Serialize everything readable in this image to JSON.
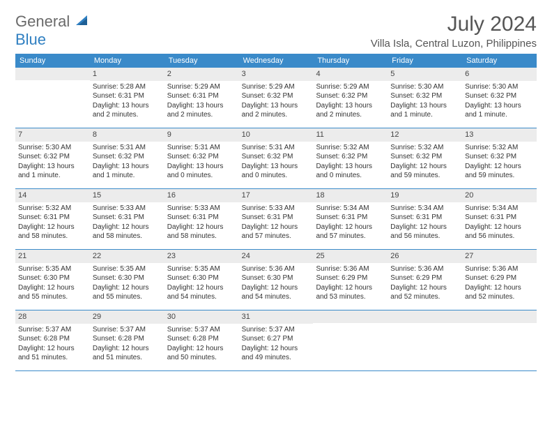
{
  "logo": {
    "part1": "General",
    "part2": "Blue"
  },
  "title": "July 2024",
  "location": "Villa Isla, Central Luzon, Philippines",
  "dayNames": [
    "Sunday",
    "Monday",
    "Tuesday",
    "Wednesday",
    "Thursday",
    "Friday",
    "Saturday"
  ],
  "colors": {
    "headerBg": "#3a8ac9",
    "dateRowBg": "#ececec",
    "rule": "#3a8ac9"
  },
  "weeks": [
    [
      {
        "date": "",
        "sunrise": "",
        "sunset": "",
        "daylight1": "",
        "daylight2": ""
      },
      {
        "date": "1",
        "sunrise": "Sunrise: 5:28 AM",
        "sunset": "Sunset: 6:31 PM",
        "daylight1": "Daylight: 13 hours",
        "daylight2": "and 2 minutes."
      },
      {
        "date": "2",
        "sunrise": "Sunrise: 5:29 AM",
        "sunset": "Sunset: 6:31 PM",
        "daylight1": "Daylight: 13 hours",
        "daylight2": "and 2 minutes."
      },
      {
        "date": "3",
        "sunrise": "Sunrise: 5:29 AM",
        "sunset": "Sunset: 6:32 PM",
        "daylight1": "Daylight: 13 hours",
        "daylight2": "and 2 minutes."
      },
      {
        "date": "4",
        "sunrise": "Sunrise: 5:29 AM",
        "sunset": "Sunset: 6:32 PM",
        "daylight1": "Daylight: 13 hours",
        "daylight2": "and 2 minutes."
      },
      {
        "date": "5",
        "sunrise": "Sunrise: 5:30 AM",
        "sunset": "Sunset: 6:32 PM",
        "daylight1": "Daylight: 13 hours",
        "daylight2": "and 1 minute."
      },
      {
        "date": "6",
        "sunrise": "Sunrise: 5:30 AM",
        "sunset": "Sunset: 6:32 PM",
        "daylight1": "Daylight: 13 hours",
        "daylight2": "and 1 minute."
      }
    ],
    [
      {
        "date": "7",
        "sunrise": "Sunrise: 5:30 AM",
        "sunset": "Sunset: 6:32 PM",
        "daylight1": "Daylight: 13 hours",
        "daylight2": "and 1 minute."
      },
      {
        "date": "8",
        "sunrise": "Sunrise: 5:31 AM",
        "sunset": "Sunset: 6:32 PM",
        "daylight1": "Daylight: 13 hours",
        "daylight2": "and 1 minute."
      },
      {
        "date": "9",
        "sunrise": "Sunrise: 5:31 AM",
        "sunset": "Sunset: 6:32 PM",
        "daylight1": "Daylight: 13 hours",
        "daylight2": "and 0 minutes."
      },
      {
        "date": "10",
        "sunrise": "Sunrise: 5:31 AM",
        "sunset": "Sunset: 6:32 PM",
        "daylight1": "Daylight: 13 hours",
        "daylight2": "and 0 minutes."
      },
      {
        "date": "11",
        "sunrise": "Sunrise: 5:32 AM",
        "sunset": "Sunset: 6:32 PM",
        "daylight1": "Daylight: 13 hours",
        "daylight2": "and 0 minutes."
      },
      {
        "date": "12",
        "sunrise": "Sunrise: 5:32 AM",
        "sunset": "Sunset: 6:32 PM",
        "daylight1": "Daylight: 12 hours",
        "daylight2": "and 59 minutes."
      },
      {
        "date": "13",
        "sunrise": "Sunrise: 5:32 AM",
        "sunset": "Sunset: 6:32 PM",
        "daylight1": "Daylight: 12 hours",
        "daylight2": "and 59 minutes."
      }
    ],
    [
      {
        "date": "14",
        "sunrise": "Sunrise: 5:32 AM",
        "sunset": "Sunset: 6:31 PM",
        "daylight1": "Daylight: 12 hours",
        "daylight2": "and 58 minutes."
      },
      {
        "date": "15",
        "sunrise": "Sunrise: 5:33 AM",
        "sunset": "Sunset: 6:31 PM",
        "daylight1": "Daylight: 12 hours",
        "daylight2": "and 58 minutes."
      },
      {
        "date": "16",
        "sunrise": "Sunrise: 5:33 AM",
        "sunset": "Sunset: 6:31 PM",
        "daylight1": "Daylight: 12 hours",
        "daylight2": "and 58 minutes."
      },
      {
        "date": "17",
        "sunrise": "Sunrise: 5:33 AM",
        "sunset": "Sunset: 6:31 PM",
        "daylight1": "Daylight: 12 hours",
        "daylight2": "and 57 minutes."
      },
      {
        "date": "18",
        "sunrise": "Sunrise: 5:34 AM",
        "sunset": "Sunset: 6:31 PM",
        "daylight1": "Daylight: 12 hours",
        "daylight2": "and 57 minutes."
      },
      {
        "date": "19",
        "sunrise": "Sunrise: 5:34 AM",
        "sunset": "Sunset: 6:31 PM",
        "daylight1": "Daylight: 12 hours",
        "daylight2": "and 56 minutes."
      },
      {
        "date": "20",
        "sunrise": "Sunrise: 5:34 AM",
        "sunset": "Sunset: 6:31 PM",
        "daylight1": "Daylight: 12 hours",
        "daylight2": "and 56 minutes."
      }
    ],
    [
      {
        "date": "21",
        "sunrise": "Sunrise: 5:35 AM",
        "sunset": "Sunset: 6:30 PM",
        "daylight1": "Daylight: 12 hours",
        "daylight2": "and 55 minutes."
      },
      {
        "date": "22",
        "sunrise": "Sunrise: 5:35 AM",
        "sunset": "Sunset: 6:30 PM",
        "daylight1": "Daylight: 12 hours",
        "daylight2": "and 55 minutes."
      },
      {
        "date": "23",
        "sunrise": "Sunrise: 5:35 AM",
        "sunset": "Sunset: 6:30 PM",
        "daylight1": "Daylight: 12 hours",
        "daylight2": "and 54 minutes."
      },
      {
        "date": "24",
        "sunrise": "Sunrise: 5:36 AM",
        "sunset": "Sunset: 6:30 PM",
        "daylight1": "Daylight: 12 hours",
        "daylight2": "and 54 minutes."
      },
      {
        "date": "25",
        "sunrise": "Sunrise: 5:36 AM",
        "sunset": "Sunset: 6:29 PM",
        "daylight1": "Daylight: 12 hours",
        "daylight2": "and 53 minutes."
      },
      {
        "date": "26",
        "sunrise": "Sunrise: 5:36 AM",
        "sunset": "Sunset: 6:29 PM",
        "daylight1": "Daylight: 12 hours",
        "daylight2": "and 52 minutes."
      },
      {
        "date": "27",
        "sunrise": "Sunrise: 5:36 AM",
        "sunset": "Sunset: 6:29 PM",
        "daylight1": "Daylight: 12 hours",
        "daylight2": "and 52 minutes."
      }
    ],
    [
      {
        "date": "28",
        "sunrise": "Sunrise: 5:37 AM",
        "sunset": "Sunset: 6:28 PM",
        "daylight1": "Daylight: 12 hours",
        "daylight2": "and 51 minutes."
      },
      {
        "date": "29",
        "sunrise": "Sunrise: 5:37 AM",
        "sunset": "Sunset: 6:28 PM",
        "daylight1": "Daylight: 12 hours",
        "daylight2": "and 51 minutes."
      },
      {
        "date": "30",
        "sunrise": "Sunrise: 5:37 AM",
        "sunset": "Sunset: 6:28 PM",
        "daylight1": "Daylight: 12 hours",
        "daylight2": "and 50 minutes."
      },
      {
        "date": "31",
        "sunrise": "Sunrise: 5:37 AM",
        "sunset": "Sunset: 6:27 PM",
        "daylight1": "Daylight: 12 hours",
        "daylight2": "and 49 minutes."
      },
      {
        "date": "",
        "sunrise": "",
        "sunset": "",
        "daylight1": "",
        "daylight2": ""
      },
      {
        "date": "",
        "sunrise": "",
        "sunset": "",
        "daylight1": "",
        "daylight2": ""
      },
      {
        "date": "",
        "sunrise": "",
        "sunset": "",
        "daylight1": "",
        "daylight2": ""
      }
    ]
  ]
}
